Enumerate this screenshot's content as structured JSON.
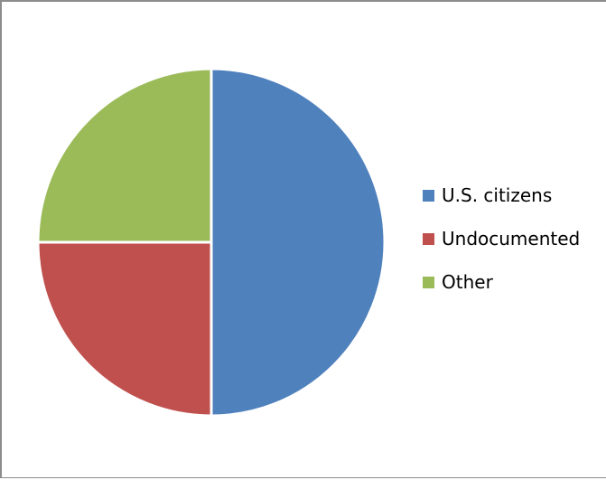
{
  "chart_data": {
    "type": "pie",
    "title": "",
    "start_angle_deg": 0,
    "direction": "clockwise",
    "legend_position": "right",
    "slices": [
      {
        "label": "U.S. citizens",
        "value": 50,
        "color": "#4f81bd"
      },
      {
        "label": "Undocumented",
        "value": 25,
        "color": "#c0504d"
      },
      {
        "label": "Other",
        "value": 25,
        "color": "#9bbb59"
      }
    ]
  }
}
